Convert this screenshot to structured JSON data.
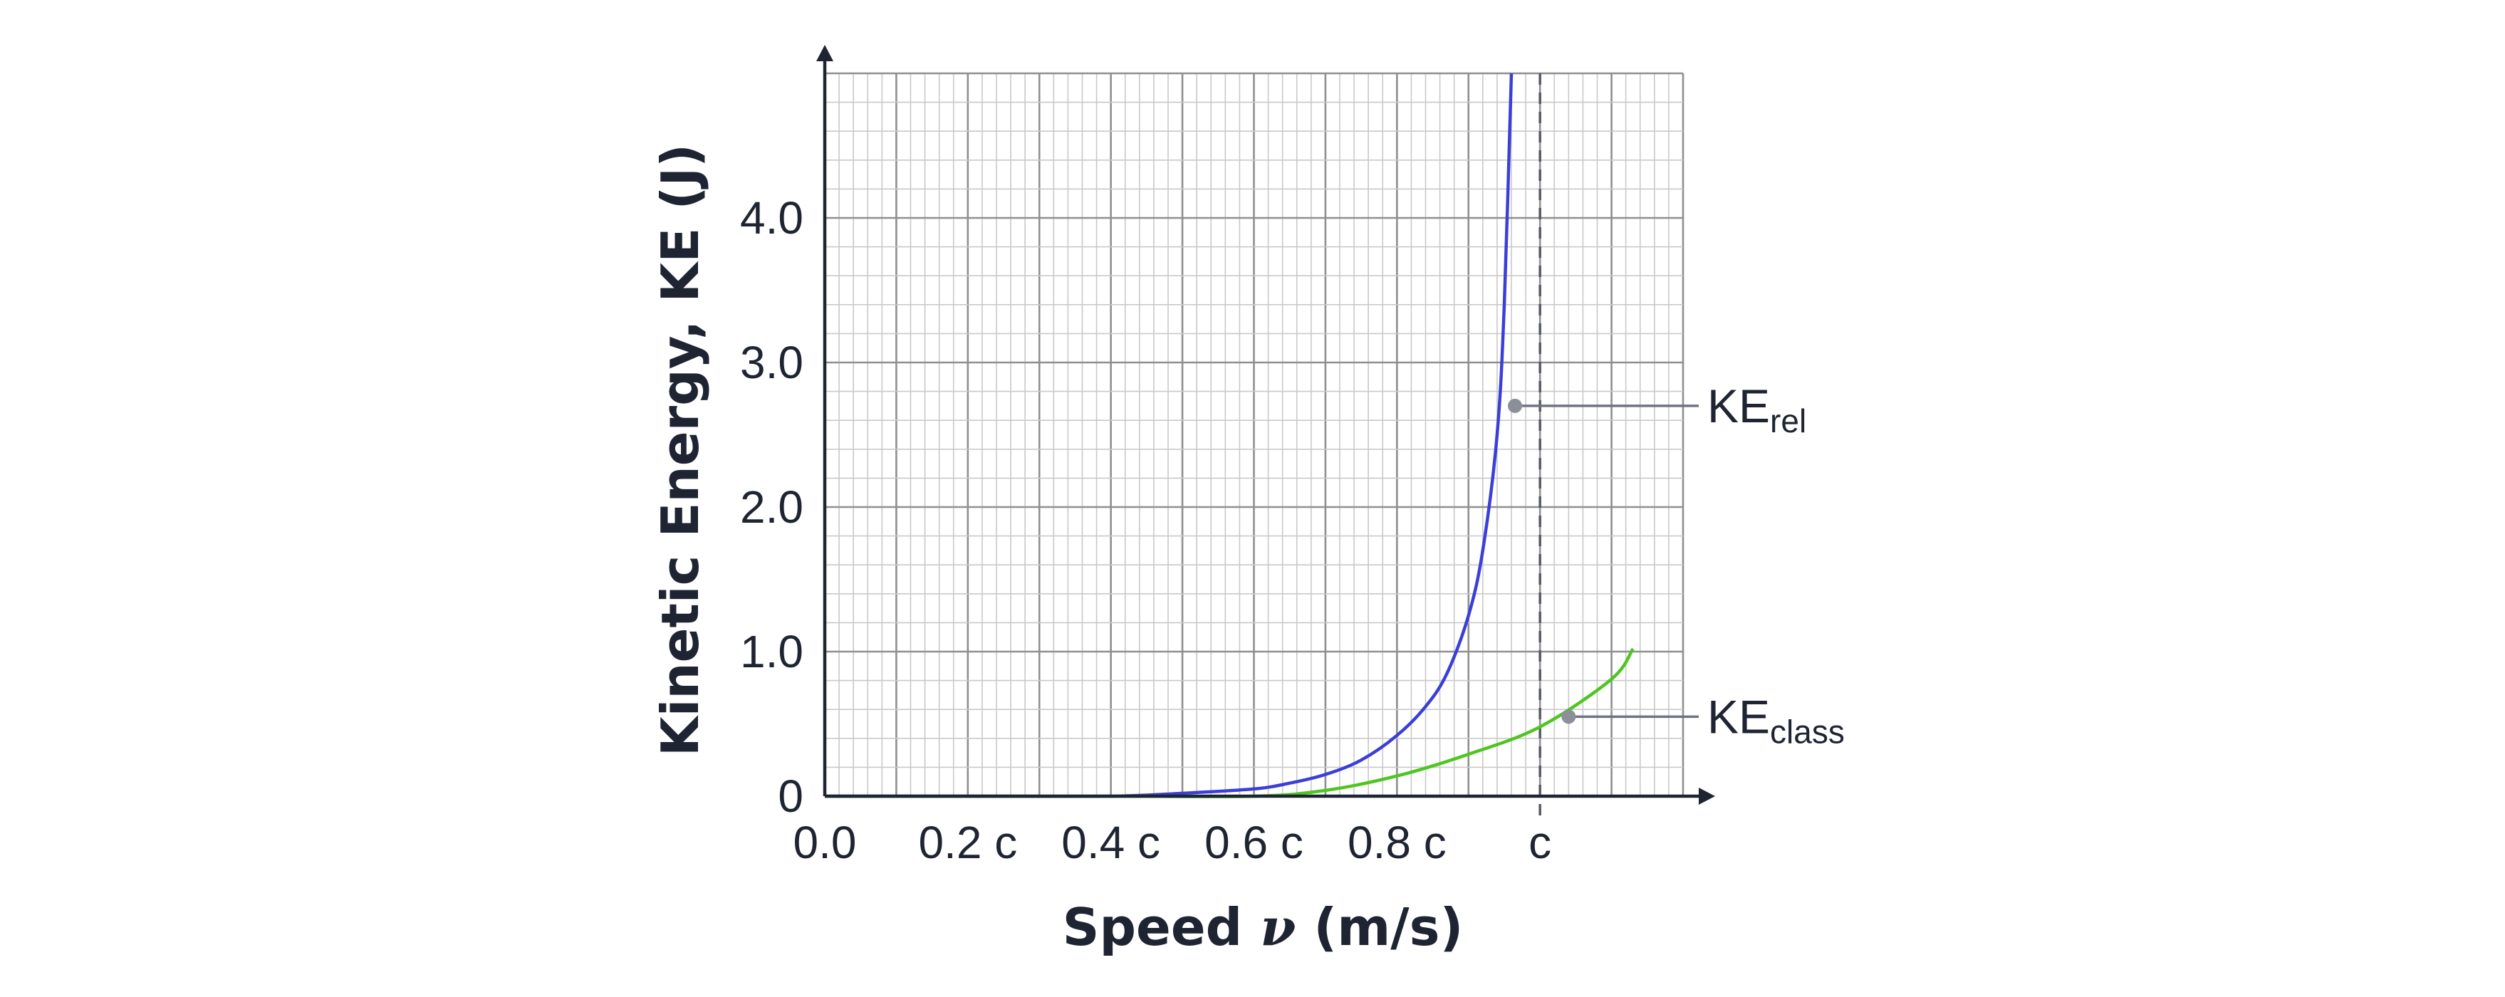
{
  "chart_data": {
    "type": "line",
    "title": "",
    "xlabel": "Speed",
    "xlabel_symbol": "ν",
    "xlabel_unit": "(m/s)",
    "ylabel": "Kinetic Energy, KE (J)",
    "xlim": [
      0,
      1.2
    ],
    "ylim": [
      0,
      5
    ],
    "grid": true,
    "x_ticks": [
      {
        "value": 0,
        "label": "0.0"
      },
      {
        "value": 0.2,
        "label": "0.2 c"
      },
      {
        "value": 0.4,
        "label": "0.4 c"
      },
      {
        "value": 0.6,
        "label": "0.6 c"
      },
      {
        "value": 0.8,
        "label": "0.8 c"
      },
      {
        "value": 1.0,
        "label": "c"
      }
    ],
    "y_ticks": [
      {
        "value": 0,
        "label": "0"
      },
      {
        "value": 1,
        "label": "1.0"
      },
      {
        "value": 2,
        "label": "2.0"
      },
      {
        "value": 3,
        "label": "3.0"
      },
      {
        "value": 4,
        "label": "4.0"
      }
    ],
    "reference_line": {
      "x": 1.0,
      "style": "dashed"
    },
    "series": [
      {
        "name": "KE",
        "name_sub": "rel",
        "color": "#3b3fd8",
        "x": [
          0,
          0.2,
          0.4,
          0.5,
          0.6,
          0.65,
          0.7,
          0.75,
          0.8,
          0.84,
          0.87,
          0.9,
          0.92,
          0.94,
          0.95,
          0.96
        ],
        "y": [
          0,
          0.0,
          0.0,
          0.02,
          0.05,
          0.09,
          0.15,
          0.25,
          0.42,
          0.62,
          0.85,
          1.25,
          1.7,
          2.5,
          3.4,
          5.0
        ],
        "label_at": {
          "x": 0.965,
          "y": 2.7
        }
      },
      {
        "name": "KE",
        "name_sub": "class",
        "color": "#4ec61f",
        "x": [
          0,
          0.2,
          0.4,
          0.6,
          0.7,
          0.8,
          0.9,
          1.0,
          1.1,
          1.13
        ],
        "y": [
          0,
          0.0,
          0.0,
          0.0,
          0.04,
          0.14,
          0.29,
          0.48,
          0.81,
          1.02
        ],
        "label_at": {
          "x": 1.04,
          "y": 0.55
        }
      }
    ]
  }
}
